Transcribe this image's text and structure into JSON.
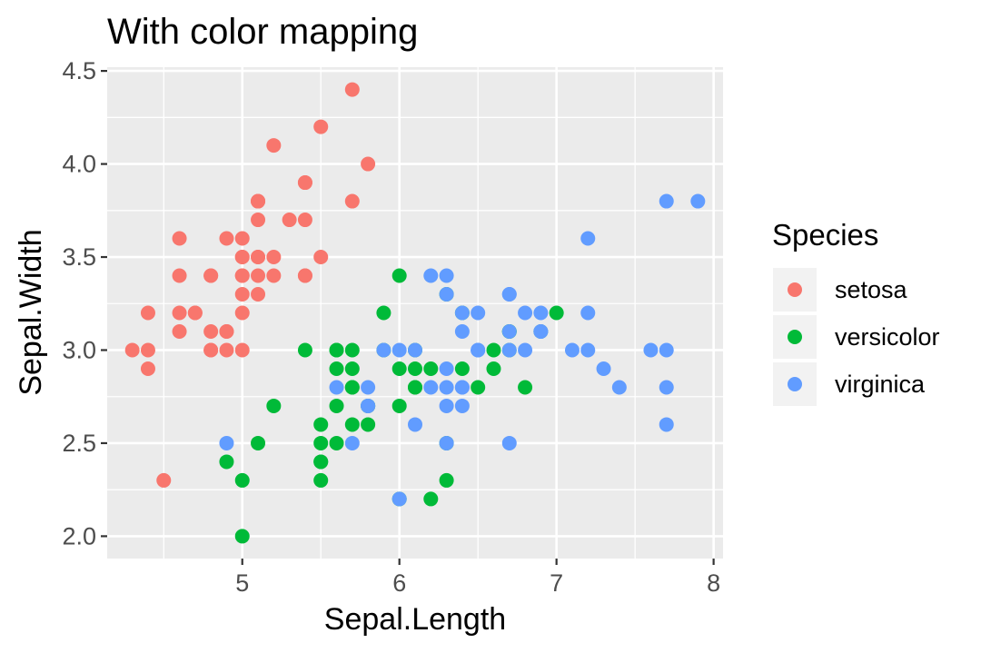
{
  "chart_data": {
    "type": "scatter",
    "title": "With color mapping",
    "xlabel": "Sepal.Length",
    "ylabel": "Sepal.Width",
    "xlim": [
      4.14,
      8.06
    ],
    "ylim": [
      1.88,
      4.52
    ],
    "x_ticks": [
      5,
      6,
      7,
      8
    ],
    "y_ticks": [
      2.0,
      2.5,
      3.0,
      3.5,
      4.0,
      4.5
    ],
    "x_tick_labels": [
      "5",
      "6",
      "7",
      "8"
    ],
    "y_tick_labels": [
      "2.0",
      "2.5",
      "3.0",
      "3.5",
      "4.0",
      "4.5"
    ],
    "grid": true,
    "legend": {
      "title": "Species",
      "position": "right",
      "entries": [
        "setosa",
        "versicolor",
        "virginica"
      ]
    },
    "series": [
      {
        "name": "setosa",
        "color": "#F8766D",
        "points": [
          [
            5.1,
            3.5
          ],
          [
            4.9,
            3.0
          ],
          [
            4.7,
            3.2
          ],
          [
            4.6,
            3.1
          ],
          [
            5.0,
            3.6
          ],
          [
            5.4,
            3.9
          ],
          [
            4.6,
            3.4
          ],
          [
            5.0,
            3.4
          ],
          [
            4.4,
            2.9
          ],
          [
            4.9,
            3.1
          ],
          [
            5.4,
            3.7
          ],
          [
            4.8,
            3.4
          ],
          [
            4.8,
            3.0
          ],
          [
            4.3,
            3.0
          ],
          [
            5.8,
            4.0
          ],
          [
            5.7,
            4.4
          ],
          [
            5.4,
            3.9
          ],
          [
            5.1,
            3.5
          ],
          [
            5.7,
            3.8
          ],
          [
            5.1,
            3.8
          ],
          [
            5.4,
            3.4
          ],
          [
            5.1,
            3.7
          ],
          [
            4.6,
            3.6
          ],
          [
            5.1,
            3.3
          ],
          [
            4.8,
            3.4
          ],
          [
            5.0,
            3.0
          ],
          [
            5.0,
            3.4
          ],
          [
            5.2,
            3.5
          ],
          [
            5.2,
            3.4
          ],
          [
            4.7,
            3.2
          ],
          [
            4.8,
            3.1
          ],
          [
            5.4,
            3.4
          ],
          [
            5.2,
            4.1
          ],
          [
            5.5,
            4.2
          ],
          [
            4.9,
            3.1
          ],
          [
            5.0,
            3.2
          ],
          [
            5.5,
            3.5
          ],
          [
            4.9,
            3.6
          ],
          [
            4.4,
            3.0
          ],
          [
            5.1,
            3.4
          ],
          [
            5.0,
            3.5
          ],
          [
            4.5,
            2.3
          ],
          [
            4.4,
            3.2
          ],
          [
            5.0,
            3.5
          ],
          [
            5.1,
            3.8
          ],
          [
            4.8,
            3.0
          ],
          [
            5.1,
            3.8
          ],
          [
            4.6,
            3.2
          ],
          [
            5.3,
            3.7
          ],
          [
            5.0,
            3.3
          ]
        ]
      },
      {
        "name": "versicolor",
        "color": "#00BA38",
        "points": [
          [
            7.0,
            3.2
          ],
          [
            6.4,
            3.2
          ],
          [
            6.9,
            3.1
          ],
          [
            5.5,
            2.3
          ],
          [
            6.5,
            2.8
          ],
          [
            5.7,
            2.8
          ],
          [
            6.3,
            3.3
          ],
          [
            4.9,
            2.4
          ],
          [
            6.6,
            2.9
          ],
          [
            5.2,
            2.7
          ],
          [
            5.0,
            2.0
          ],
          [
            5.9,
            3.0
          ],
          [
            6.0,
            2.2
          ],
          [
            6.1,
            2.9
          ],
          [
            5.6,
            2.9
          ],
          [
            6.7,
            3.1
          ],
          [
            5.6,
            3.0
          ],
          [
            5.8,
            2.7
          ],
          [
            6.2,
            2.2
          ],
          [
            5.6,
            2.5
          ],
          [
            5.9,
            3.2
          ],
          [
            6.1,
            2.8
          ],
          [
            6.3,
            2.5
          ],
          [
            6.1,
            2.8
          ],
          [
            6.4,
            2.9
          ],
          [
            6.6,
            3.0
          ],
          [
            6.8,
            2.8
          ],
          [
            6.7,
            3.0
          ],
          [
            6.0,
            2.9
          ],
          [
            5.7,
            2.6
          ],
          [
            5.5,
            2.4
          ],
          [
            5.5,
            2.4
          ],
          [
            5.8,
            2.7
          ],
          [
            6.0,
            2.7
          ],
          [
            5.4,
            3.0
          ],
          [
            6.0,
            3.4
          ],
          [
            6.7,
            3.1
          ],
          [
            6.3,
            2.3
          ],
          [
            5.6,
            3.0
          ],
          [
            5.5,
            2.5
          ],
          [
            5.5,
            2.6
          ],
          [
            6.1,
            3.0
          ],
          [
            5.8,
            2.6
          ],
          [
            5.0,
            2.3
          ],
          [
            5.6,
            2.7
          ],
          [
            5.7,
            3.0
          ],
          [
            5.7,
            2.9
          ],
          [
            6.2,
            2.9
          ],
          [
            5.1,
            2.5
          ],
          [
            5.7,
            2.8
          ]
        ]
      },
      {
        "name": "virginica",
        "color": "#619CFF",
        "points": [
          [
            6.3,
            3.3
          ],
          [
            5.8,
            2.7
          ],
          [
            7.1,
            3.0
          ],
          [
            6.3,
            2.9
          ],
          [
            6.5,
            3.0
          ],
          [
            7.6,
            3.0
          ],
          [
            4.9,
            2.5
          ],
          [
            7.3,
            2.9
          ],
          [
            6.7,
            2.5
          ],
          [
            7.2,
            3.6
          ],
          [
            6.5,
            3.2
          ],
          [
            6.4,
            2.7
          ],
          [
            6.8,
            3.0
          ],
          [
            5.7,
            2.5
          ],
          [
            5.8,
            2.8
          ],
          [
            6.4,
            3.2
          ],
          [
            6.5,
            3.0
          ],
          [
            7.7,
            3.8
          ],
          [
            7.7,
            2.6
          ],
          [
            6.0,
            2.2
          ],
          [
            6.9,
            3.2
          ],
          [
            5.6,
            2.8
          ],
          [
            7.7,
            2.8
          ],
          [
            6.3,
            2.7
          ],
          [
            6.7,
            3.3
          ],
          [
            7.2,
            3.2
          ],
          [
            6.2,
            2.8
          ],
          [
            6.1,
            3.0
          ],
          [
            6.4,
            2.8
          ],
          [
            7.2,
            3.0
          ],
          [
            7.4,
            2.8
          ],
          [
            7.9,
            3.8
          ],
          [
            6.4,
            2.8
          ],
          [
            6.3,
            2.8
          ],
          [
            6.1,
            2.6
          ],
          [
            7.7,
            3.0
          ],
          [
            6.3,
            3.4
          ],
          [
            6.4,
            3.1
          ],
          [
            6.0,
            3.0
          ],
          [
            6.9,
            3.1
          ],
          [
            6.7,
            3.1
          ],
          [
            6.9,
            3.1
          ],
          [
            5.8,
            2.7
          ],
          [
            6.8,
            3.2
          ],
          [
            6.7,
            3.3
          ],
          [
            6.7,
            3.0
          ],
          [
            6.3,
            2.5
          ],
          [
            6.5,
            3.0
          ],
          [
            6.2,
            3.4
          ],
          [
            5.9,
            3.0
          ]
        ]
      }
    ]
  }
}
